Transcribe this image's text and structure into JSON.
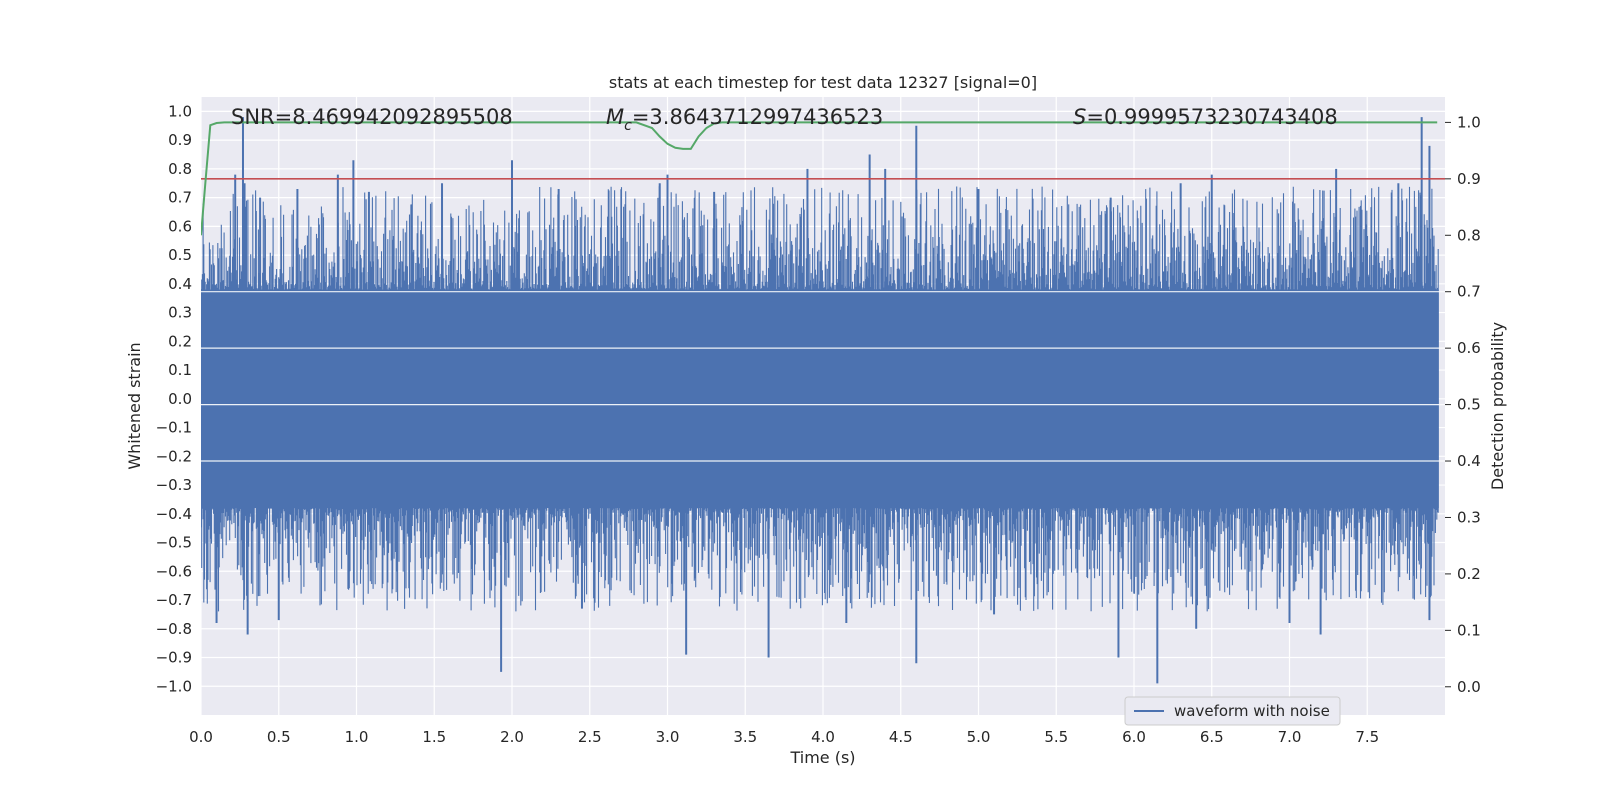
{
  "chart_data": {
    "type": "line",
    "title": "stats at each timestep for test data 12327 [signal=0]",
    "xlabel": "Time (s)",
    "ylabel": "Whitened strain",
    "y2label": "Detection probability",
    "xlim": [
      0.0,
      8.0
    ],
    "ylim": [
      -1.1,
      1.05
    ],
    "y2lim": [
      -0.05,
      1.045
    ],
    "xticks": [
      0.0,
      0.5,
      1.0,
      1.5,
      2.0,
      2.5,
      3.0,
      3.5,
      4.0,
      4.5,
      5.0,
      5.5,
      6.0,
      6.5,
      7.0,
      7.5
    ],
    "xtick_labels": [
      "0.0",
      "0.5",
      "1.0",
      "1.5",
      "2.0",
      "2.5",
      "3.0",
      "3.5",
      "4.0",
      "4.5",
      "5.0",
      "5.5",
      "6.0",
      "6.5",
      "7.0",
      "7.5"
    ],
    "yticks": [
      1.0,
      0.9,
      0.8,
      0.7,
      0.6,
      0.5,
      0.4,
      0.3,
      0.2,
      0.1,
      0.0,
      -0.1,
      -0.2,
      -0.3,
      -0.4,
      -0.5,
      -0.6,
      -0.7,
      -0.8,
      -0.9,
      -1.0
    ],
    "ytick_labels": [
      "1.0",
      "0.9",
      "0.8",
      "0.7",
      "0.6",
      "0.5",
      "0.4",
      "0.3",
      "0.2",
      "0.1",
      "0.0",
      "−0.1",
      "−0.2",
      "−0.3",
      "−0.4",
      "−0.5",
      "−0.6",
      "−0.7",
      "−0.8",
      "−0.9",
      "−1.0"
    ],
    "y2ticks": [
      1.0,
      0.9,
      0.8,
      0.7,
      0.6,
      0.5,
      0.4,
      0.3,
      0.2,
      0.1,
      0.0
    ],
    "y2tick_labels": [
      "1.0",
      "0.9",
      "0.8",
      "0.7",
      "0.6",
      "0.5",
      "0.4",
      "0.3",
      "0.2",
      "0.1",
      "0.0"
    ],
    "annotations": {
      "snr": "SNR=8.469942092895508",
      "mc_symbol": "M",
      "mc_subscript": "c",
      "mc_value": "=3.8643712997436523",
      "s_symbol": "S",
      "s_value": "=0.9999573230743408"
    },
    "legend": {
      "label": "waveform with noise",
      "loc": "lower-right"
    },
    "threshold": {
      "value": 0.9,
      "axis": "right",
      "color": "#c44e52"
    },
    "waveform": {
      "name": "waveform with noise",
      "color": "#4c72b0",
      "envelope_pos": 0.38,
      "envelope_neg": -0.38,
      "max": 0.98,
      "min": -0.99
    },
    "probability_series": {
      "name": "detection probability",
      "color": "#55a868",
      "x": [
        0.0,
        0.03,
        0.06,
        0.1,
        0.15,
        0.2,
        0.5,
        1.0,
        1.5,
        2.0,
        2.5,
        2.7,
        2.8,
        2.9,
        2.95,
        3.0,
        3.05,
        3.1,
        3.15,
        3.2,
        3.25,
        3.3,
        3.35,
        3.5,
        4.0,
        5.0,
        6.0,
        7.0,
        7.5,
        7.95
      ],
      "y": [
        0.8,
        0.9,
        0.995,
        0.999,
        1.0,
        1.0,
        1.0,
        1.0,
        1.0,
        1.0,
        1.0,
        1.0,
        1.0,
        0.99,
        0.975,
        0.962,
        0.955,
        0.953,
        0.953,
        0.975,
        0.99,
        0.998,
        1.0,
        1.0,
        1.0,
        1.0,
        1.0,
        1.0,
        1.0,
        1.0
      ]
    },
    "spikes_up": [
      [
        0.27,
        0.98
      ],
      [
        0.22,
        0.78
      ],
      [
        0.28,
        0.75
      ],
      [
        0.38,
        0.7
      ],
      [
        0.62,
        0.73
      ],
      [
        0.88,
        0.78
      ],
      [
        0.98,
        0.83
      ],
      [
        1.08,
        0.72
      ],
      [
        1.55,
        0.75
      ],
      [
        2.0,
        0.83
      ],
      [
        2.3,
        0.73
      ],
      [
        2.95,
        0.75
      ],
      [
        3.0,
        0.78
      ],
      [
        3.3,
        0.72
      ],
      [
        3.9,
        0.8
      ],
      [
        4.3,
        0.85
      ],
      [
        4.4,
        0.8
      ],
      [
        4.6,
        0.95
      ],
      [
        5.0,
        0.73
      ],
      [
        5.85,
        0.7
      ],
      [
        6.3,
        0.75
      ],
      [
        6.5,
        0.78
      ],
      [
        7.3,
        0.8
      ],
      [
        7.7,
        0.75
      ],
      [
        7.85,
        0.98
      ],
      [
        7.9,
        0.88
      ]
    ],
    "spikes_down": [
      [
        0.3,
        -0.82
      ],
      [
        0.1,
        -0.78
      ],
      [
        0.5,
        -0.77
      ],
      [
        1.93,
        -0.95
      ],
      [
        2.45,
        -0.73
      ],
      [
        3.12,
        -0.89
      ],
      [
        3.65,
        -0.9
      ],
      [
        4.15,
        -0.78
      ],
      [
        4.6,
        -0.92
      ],
      [
        5.1,
        -0.75
      ],
      [
        5.9,
        -0.9
      ],
      [
        6.15,
        -0.99
      ],
      [
        6.4,
        -0.8
      ],
      [
        7.0,
        -0.78
      ],
      [
        7.2,
        -0.82
      ],
      [
        7.9,
        -0.77
      ]
    ]
  }
}
